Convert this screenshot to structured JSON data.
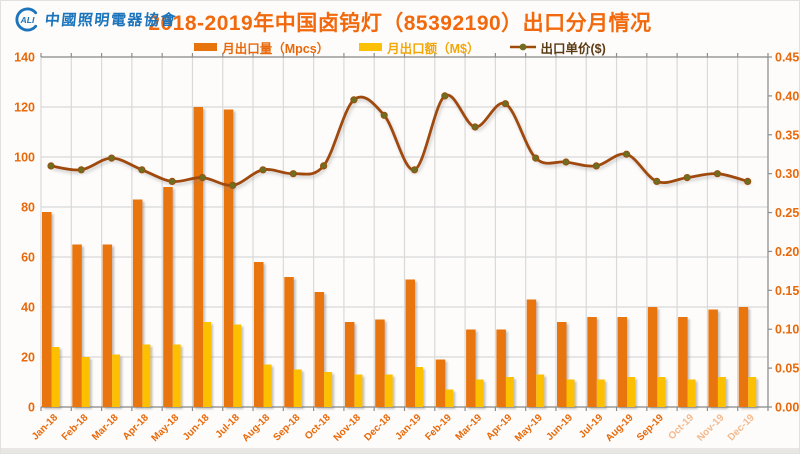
{
  "header": {
    "logo": {
      "letters": "ALI",
      "org_name": "中國照明電器協會"
    },
    "title": "2018-2019年中国卤钨灯（85392190）出口分月情况"
  },
  "colors": {
    "title": "#F2690D",
    "axis_labels": "#E8690B",
    "gridline": "#D9D9D9",
    "axis_line": "#9C9C9C",
    "tick": "#8C8C8C",
    "logo_blue": "#1C75BC",
    "background": "#FDFCFA"
  },
  "chart_data": {
    "type": "combo",
    "title": "2018-2019年中国卤钨灯（85392190）出口分月情况",
    "categories": [
      "Jan-18",
      "Feb-18",
      "Mar-18",
      "Apr-18",
      "May-18",
      "Jun-18",
      "Jul-18",
      "Aug-18",
      "Sep-18",
      "Oct-18",
      "Nov-18",
      "Dec-18",
      "Jan-19",
      "Feb-19",
      "Mar-19",
      "Apr-19",
      "May-19",
      "Jun-19",
      "Jul-19",
      "Aug-19",
      "Sep-19",
      "Oct-19",
      "Nov-19",
      "Dec-19"
    ],
    "series": [
      {
        "name": "月出口量（Mpcs）",
        "type": "bar",
        "axis": "left",
        "color": "#E8740E",
        "label_color": "#E8690B",
        "values": [
          78,
          65,
          65,
          83,
          88,
          120,
          119,
          58,
          52,
          46,
          34,
          35,
          51,
          19,
          31,
          31,
          43,
          34,
          36,
          36,
          40,
          36,
          39,
          40
        ]
      },
      {
        "name": "月出口额（M$）",
        "type": "bar",
        "axis": "left",
        "color": "#FCC006",
        "label_color": "#F2A70A",
        "values": [
          24,
          20,
          21,
          25,
          25,
          34,
          33,
          17,
          15,
          14,
          13,
          13,
          16,
          7,
          11,
          12,
          13,
          11,
          11,
          12,
          12,
          11,
          12,
          12
        ]
      },
      {
        "name": "出口单价($)",
        "type": "line",
        "axis": "right",
        "color": "#A04A0A",
        "marker_color": "#6E6E20",
        "label_color": "#5C3A14",
        "values": [
          0.31,
          0.305,
          0.32,
          0.305,
          0.29,
          0.295,
          0.285,
          0.305,
          0.3,
          0.31,
          0.395,
          0.375,
          0.305,
          0.4,
          0.36,
          0.39,
          0.32,
          0.315,
          0.31,
          0.325,
          0.29,
          0.295,
          0.3,
          0.29
        ]
      }
    ],
    "left_axis": {
      "min": 0,
      "max": 140,
      "step": 20
    },
    "right_axis": {
      "min": 0,
      "max": 0.45,
      "step": 0.05,
      "decimals": 2
    },
    "grid": true,
    "legend_position": "top",
    "faded_category_count": 3
  }
}
